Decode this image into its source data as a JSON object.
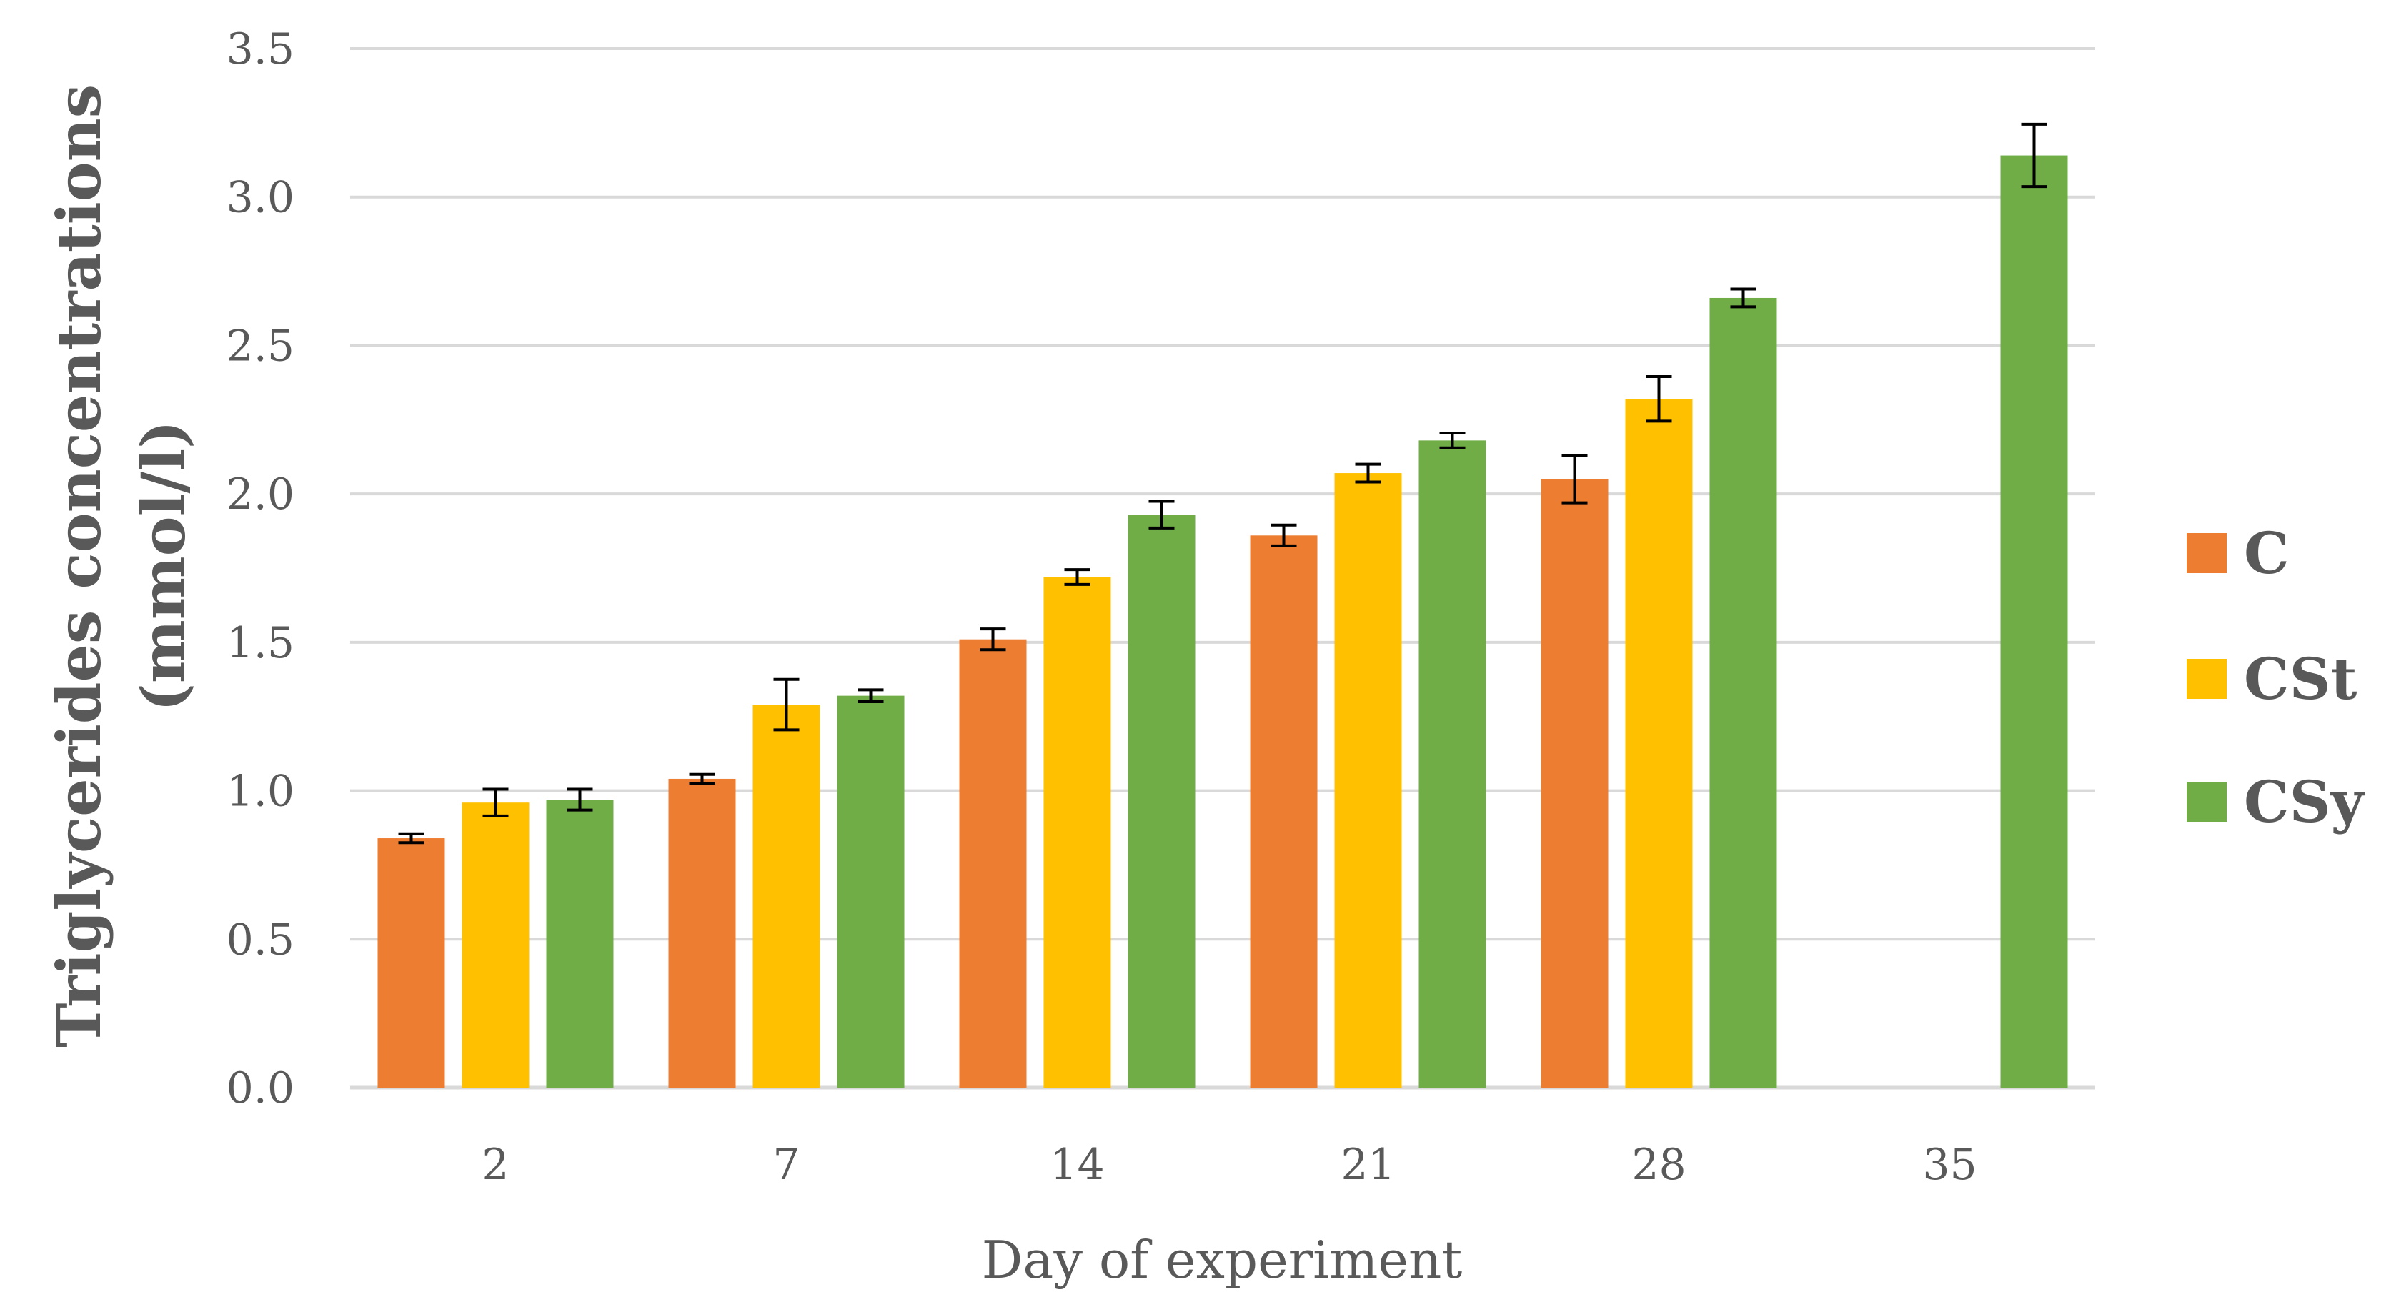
{
  "chart_data": {
    "type": "bar",
    "title": "",
    "xlabel": "Day of experiment",
    "ylabel_line1": "Triglycerides concentrations",
    "ylabel_line2": "(mmol/l)",
    "ylim": [
      0,
      3.5
    ],
    "y_ticks": [
      "0.0",
      "0.5",
      "1.0",
      "1.5",
      "2.0",
      "2.5",
      "3.0",
      "3.5"
    ],
    "y_tick_values": [
      0,
      0.5,
      1.0,
      1.5,
      2.0,
      2.5,
      3.0,
      3.5
    ],
    "grid": true,
    "legend_position": "right",
    "categories": [
      "2",
      "7",
      "14",
      "21",
      "28",
      "35"
    ],
    "series": [
      {
        "name": "C",
        "color": "#ED7D31",
        "values": [
          0.84,
          1.04,
          1.51,
          1.86,
          2.05,
          null
        ],
        "errors": [
          0.015,
          0.015,
          0.035,
          0.035,
          0.08,
          null
        ]
      },
      {
        "name": "CSt",
        "color": "#FFC000",
        "values": [
          0.96,
          1.29,
          1.72,
          2.07,
          2.32,
          null
        ],
        "errors": [
          0.045,
          0.085,
          0.025,
          0.03,
          0.075,
          null
        ]
      },
      {
        "name": "CSy",
        "color": "#70AD47",
        "values": [
          0.97,
          1.32,
          1.93,
          2.18,
          2.66,
          3.14
        ],
        "errors": [
          0.035,
          0.02,
          0.045,
          0.025,
          0.03,
          0.105
        ]
      }
    ]
  }
}
